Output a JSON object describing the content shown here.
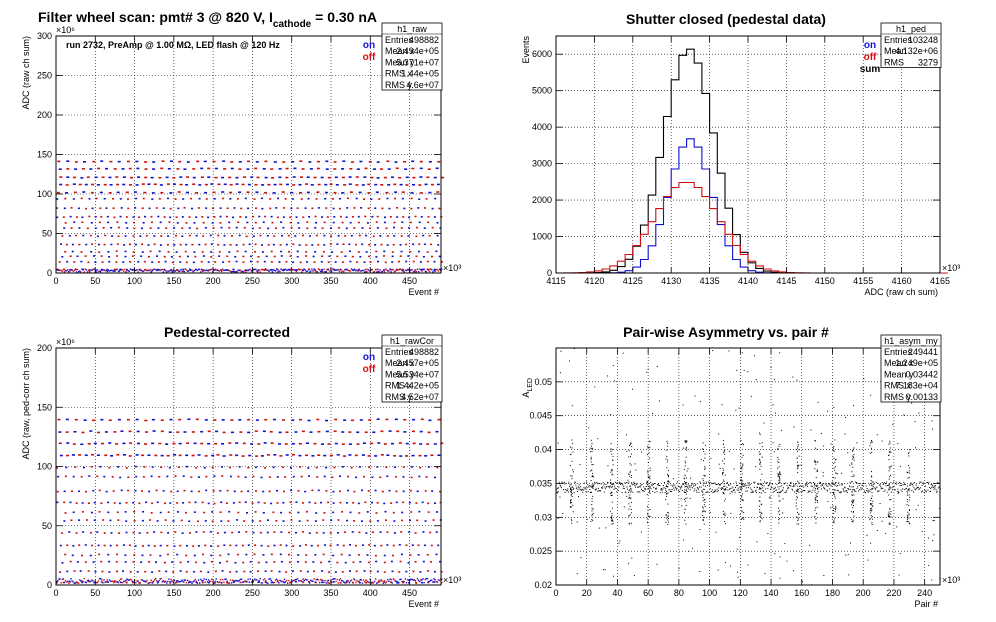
{
  "page_title": {
    "prefix": "Filter wheel scan: pmt#   3 @   820 V, I",
    "sub": "cathode",
    "suffix": " = 0.30 nA"
  },
  "colors": {
    "on": "#1010d0",
    "off": "#d01010",
    "sum": "#000000"
  },
  "chart_data": [
    {
      "id": "h1_raw",
      "type": "scatter",
      "title": "",
      "xlabel": "Event #",
      "ylabel": "ADC (raw ch sum)",
      "x_exp": "×10³",
      "y_exp": "×10⁶",
      "xlim": [
        0,
        490
      ],
      "ylim": [
        0,
        300
      ],
      "xticks": [
        0,
        50,
        100,
        150,
        200,
        250,
        300,
        350,
        400,
        450
      ],
      "yticks": [
        0,
        50,
        100,
        150,
        200,
        250,
        300
      ],
      "annotation": "run 2732, PreAmp @ 1.00 MΩ, LED flash @  120 Hz",
      "legend": [
        {
          "label": "on",
          "color": "#1010d0"
        },
        {
          "label": "off",
          "color": "#d01010"
        }
      ],
      "levels": [
        5,
        15,
        22,
        28,
        37,
        48,
        58,
        65,
        72,
        83,
        95,
        103,
        113,
        122,
        133,
        142
      ],
      "stats": {
        "name": "h1_raw",
        "rows": [
          [
            "Entries",
            "498882"
          ],
          [
            "Mean x",
            "2.494e+05"
          ],
          [
            "Mean y",
            "5.371e+07"
          ],
          [
            "RMS x",
            "1.44e+05"
          ],
          [
            "RMS y",
            "4.6e+07"
          ]
        ]
      }
    },
    {
      "id": "h1_ped",
      "type": "line",
      "title": "Shutter closed (pedestal data)",
      "xlabel": "ADC (raw ch sum)",
      "ylabel": "Events",
      "x_exp": "×10³",
      "xlim": [
        4115,
        4165
      ],
      "ylim": [
        0,
        6500
      ],
      "xticks": [
        4115,
        4120,
        4125,
        4130,
        4135,
        4140,
        4145,
        4150,
        4155,
        4160,
        4165
      ],
      "yticks": [
        0,
        1000,
        2000,
        3000,
        4000,
        5000,
        6000
      ],
      "legend": [
        {
          "label": "on",
          "color": "#1010d0"
        },
        {
          "label": "off",
          "color": "#d01010"
        },
        {
          "label": "sum",
          "color": "#000000"
        }
      ],
      "series": [
        {
          "name": "sum",
          "color": "#000000",
          "mu": 4132.3,
          "sigma": 3.3,
          "peak": 6150
        },
        {
          "name": "on",
          "color": "#1010d0",
          "mu": 4132.5,
          "sigma": 2.8,
          "peak": 3680
        },
        {
          "name": "off",
          "color": "#d01010",
          "mu": 4132.0,
          "sigma": 4.2,
          "peak": 2500
        }
      ],
      "stats": {
        "name": "h1_ped",
        "rows": [
          [
            "Entries",
            "103248"
          ],
          [
            "Mean",
            "4.132e+06"
          ],
          [
            "RMS",
            "3279"
          ]
        ]
      }
    },
    {
      "id": "h1_rawCor",
      "type": "scatter",
      "title": "Pedestal-corrected",
      "xlabel": "Event #",
      "ylabel": "ADC (raw, ped-corr ch sum)",
      "x_exp": "×10³",
      "y_exp": "×10⁶",
      "xlim": [
        0,
        490
      ],
      "ylim": [
        0,
        200
      ],
      "xticks": [
        0,
        50,
        100,
        150,
        200,
        250,
        300,
        350,
        400,
        450
      ],
      "yticks": [
        0,
        50,
        100,
        150,
        200
      ],
      "legend": [
        {
          "label": "on",
          "color": "#1010d0"
        },
        {
          "label": "off",
          "color": "#d01010"
        }
      ],
      "levels": [
        3,
        12,
        20,
        26,
        34,
        45,
        55,
        62,
        70,
        80,
        92,
        100,
        110,
        120,
        130,
        140
      ],
      "stats": {
        "name": "h1_rawCor",
        "rows": [
          [
            "Entries",
            "498882"
          ],
          [
            "Mean x",
            "2.457e+05"
          ],
          [
            "Mean y",
            "5.534e+07"
          ],
          [
            "RMS x",
            "1.442e+05"
          ],
          [
            "RMS y",
            "4.52e+07"
          ]
        ]
      }
    },
    {
      "id": "h1_asym_my",
      "type": "scatter",
      "title": "Pair-wise Asymmetry vs. pair #",
      "xlabel": "Pair #",
      "ylabel": "A_LED",
      "x_exp": "×10³",
      "xlim": [
        0,
        250
      ],
      "ylim": [
        0.02,
        0.055
      ],
      "xticks": [
        0,
        20,
        40,
        60,
        80,
        100,
        120,
        140,
        160,
        180,
        200,
        220,
        240
      ],
      "yticks": [
        0.02,
        0.025,
        0.03,
        0.035,
        0.04,
        0.045,
        0.05
      ],
      "band_center": 0.0345,
      "band_halfwidth": 0.0008,
      "spikes": [
        10,
        23,
        36,
        48,
        60,
        72,
        84,
        96,
        109,
        121,
        133,
        145,
        157,
        169,
        181,
        193,
        205,
        217,
        229
      ],
      "stats": {
        "name": "h1_asym_my",
        "rows": [
          [
            "Entries",
            "249441"
          ],
          [
            "Mean x",
            "1.249e+05"
          ],
          [
            "Mean y",
            "0.03442"
          ],
          [
            "RMS x",
            "7.183e+04"
          ],
          [
            "RMS y",
            "0.00133"
          ]
        ]
      }
    }
  ]
}
